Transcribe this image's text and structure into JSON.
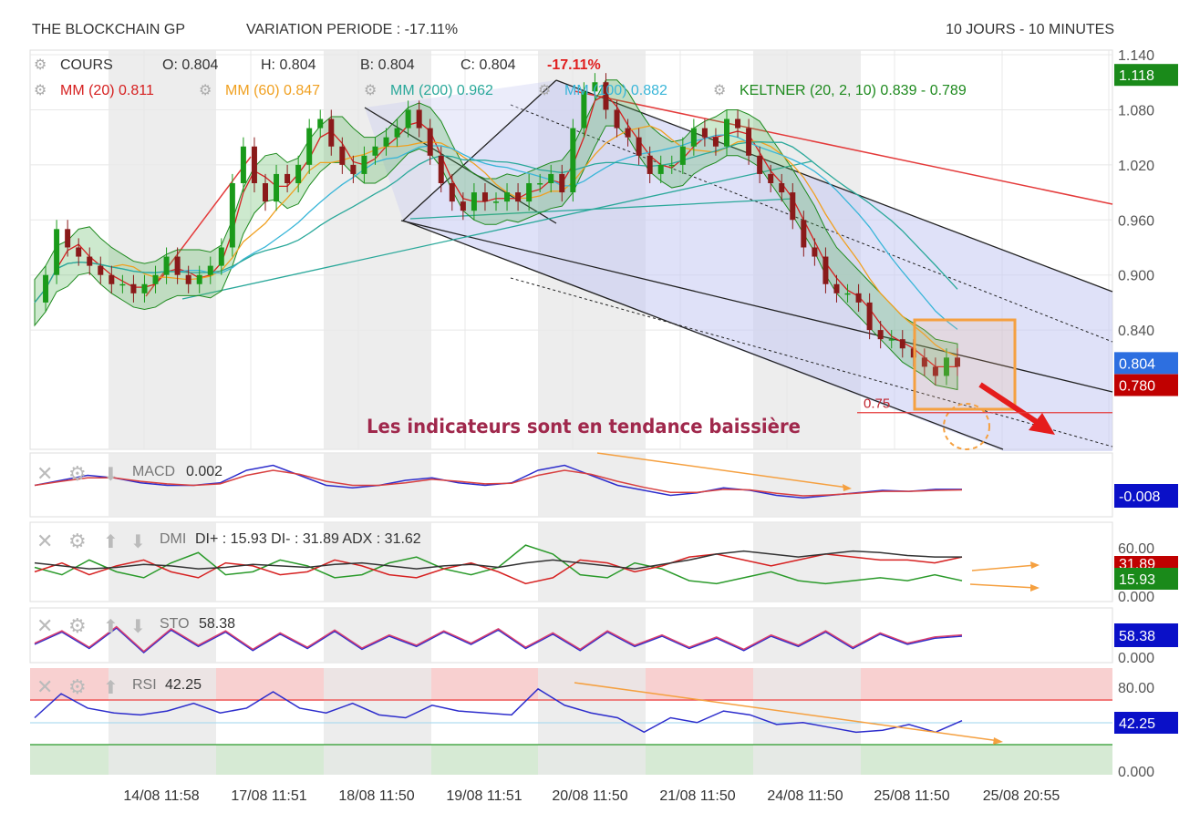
{
  "header": {
    "name": "THE BLOCKCHAIN GP",
    "variation": "VARIATION PERIODE : -17.11%",
    "period": "10 JOURS - 10 MINUTES"
  },
  "colors": {
    "mm20": "#d62020",
    "mm60": "#f0a020",
    "mm200": "#2aa89a",
    "mm100": "#39b6d8",
    "keltner": "#1e8a1e",
    "channel": "#c5c8f2",
    "neg_badge": "#0a10c8",
    "up_badge": "#1a8a1a",
    "down_badge": "#c00000",
    "annotation": "#a0284c"
  },
  "chart_data": [
    {
      "type": "line",
      "name_panel": "price",
      "title": "COURS",
      "ohlc": {
        "o_label": "O: 0.804",
        "h_label": "H: 0.804",
        "b_label": "B: 0.804",
        "c_label": "C: 0.804",
        "change": "-17.11%"
      },
      "legend": [
        {
          "label": "MM (20)",
          "value": "0.811",
          "color": "#d62020"
        },
        {
          "label": "MM (60)",
          "value": "0.847",
          "color": "#f0a020"
        },
        {
          "label": "MM (200)",
          "value": "0.962",
          "color": "#2aa89a"
        },
        {
          "label": "MM (100)",
          "value": "0.882",
          "color": "#39b6d8"
        },
        {
          "label": "KELTNER (20, 2, 10)",
          "value": "0.839 - 0.789",
          "color": "#1e8a1e"
        }
      ],
      "x_ticks": [
        "14/08 11:58",
        "17/08 11:51",
        "18/08 11:50",
        "19/08 11:51",
        "20/08 11:50",
        "21/08 11:50",
        "24/08 11:50",
        "25/08 11:50",
        "25/08 20:55"
      ],
      "y_ticks": [
        "1.140",
        "1.080",
        "1.020",
        "0.960",
        "0.900",
        "0.840"
      ],
      "ylim": [
        0.71,
        1.145
      ],
      "badges": [
        {
          "text": "1.118",
          "value": 1.118,
          "color": "#1a8a1a"
        },
        {
          "text": "0.804",
          "value": 0.804,
          "color": "#2d6fe0"
        },
        {
          "text": "0.780",
          "value": 0.78,
          "color": "#c00000"
        }
      ],
      "close_series": [
        0.87,
        0.9,
        0.95,
        0.93,
        0.92,
        0.91,
        0.9,
        0.89,
        0.89,
        0.88,
        0.89,
        0.9,
        0.92,
        0.9,
        0.89,
        0.9,
        0.91,
        0.93,
        1.0,
        1.04,
        1.0,
        0.98,
        1.01,
        1.0,
        1.02,
        1.06,
        1.07,
        1.04,
        1.02,
        1.01,
        1.03,
        1.04,
        1.05,
        1.06,
        1.08,
        1.06,
        1.03,
        1.0,
        0.98,
        0.97,
        0.99,
        0.98,
        0.98,
        0.99,
        0.98,
        1.0,
        1.0,
        1.01,
        0.99,
        1.06,
        1.1,
        1.11,
        1.08,
        1.06,
        1.05,
        1.03,
        1.01,
        1.02,
        1.02,
        1.04,
        1.06,
        1.05,
        1.04,
        1.07,
        1.06,
        1.03,
        1.01,
        1.0,
        0.99,
        0.96,
        0.93,
        0.92,
        0.89,
        0.88,
        0.88,
        0.87,
        0.84,
        0.83,
        0.83,
        0.82,
        0.81,
        0.8,
        0.79,
        0.81,
        0.8
      ],
      "level_label": "0.75",
      "level_value": 0.75,
      "annotation": "Les indicateurs sont en tendance baissière"
    },
    {
      "type": "line",
      "name_panel": "macd",
      "title": "MACD",
      "value": "0.002",
      "badge": {
        "text": "-0.008",
        "color": "#0a10c8"
      },
      "series": [
        {
          "name": "MACD",
          "values": [
            0.0,
            0.01,
            0.02,
            0.015,
            0.005,
            0.0,
            0.0,
            0.005,
            0.03,
            0.04,
            0.02,
            0.0,
            -0.005,
            0.0,
            0.01,
            0.015,
            0.005,
            0.0,
            0.005,
            0.03,
            0.04,
            0.02,
            0.0,
            -0.01,
            -0.02,
            -0.015,
            -0.005,
            -0.01,
            -0.02,
            -0.025,
            -0.02,
            -0.015,
            -0.01,
            -0.012,
            -0.008,
            -0.008
          ]
        },
        {
          "name": "Signal",
          "values": [
            0.0,
            0.008,
            0.015,
            0.015,
            0.008,
            0.003,
            0.0,
            0.003,
            0.02,
            0.03,
            0.022,
            0.008,
            0.0,
            0.0,
            0.005,
            0.012,
            0.008,
            0.003,
            0.004,
            0.02,
            0.03,
            0.022,
            0.008,
            -0.004,
            -0.014,
            -0.014,
            -0.008,
            -0.009,
            -0.016,
            -0.021,
            -0.019,
            -0.016,
            -0.012,
            -0.012,
            -0.01,
            -0.009
          ]
        }
      ]
    },
    {
      "type": "line",
      "name_panel": "dmi",
      "title": "DMI",
      "value": "DI+ : 15.93 DI- : 31.89 ADX : 31.62",
      "y_ticks": [
        "60.00",
        "0.000"
      ],
      "badges": [
        {
          "text": "31.89",
          "color": "#c00000"
        },
        {
          "text": "15.93",
          "color": "#1a8a1a"
        }
      ],
      "series": [
        {
          "name": "DI+",
          "values": [
            25,
            20,
            30,
            22,
            18,
            28,
            35,
            20,
            22,
            30,
            26,
            18,
            20,
            28,
            32,
            24,
            20,
            25,
            40,
            34,
            20,
            18,
            28,
            24,
            16,
            14,
            18,
            22,
            16,
            14,
            16,
            18,
            16,
            20,
            16
          ]
        },
        {
          "name": "DI-",
          "values": [
            22,
            28,
            20,
            26,
            30,
            22,
            18,
            28,
            26,
            20,
            22,
            30,
            26,
            20,
            18,
            24,
            28,
            22,
            14,
            18,
            30,
            28,
            22,
            26,
            32,
            34,
            30,
            26,
            30,
            34,
            32,
            30,
            30,
            28,
            32
          ]
        },
        {
          "name": "ADX",
          "values": [
            28,
            26,
            24,
            25,
            27,
            26,
            24,
            25,
            27,
            26,
            25,
            27,
            28,
            26,
            24,
            26,
            27,
            25,
            28,
            30,
            28,
            26,
            24,
            27,
            30,
            34,
            36,
            34,
            32,
            34,
            36,
            35,
            33,
            32,
            32
          ]
        }
      ]
    },
    {
      "type": "line",
      "name_panel": "sto",
      "title": "STO",
      "value": "58.38",
      "y_ticks": [
        "0.000"
      ],
      "badge": {
        "text": "58.38",
        "color": "#0a10c8"
      },
      "values": [
        40,
        70,
        30,
        80,
        20,
        75,
        35,
        70,
        25,
        65,
        30,
        72,
        28,
        60,
        35,
        70,
        40,
        75,
        30,
        65,
        25,
        70,
        35,
        60,
        30,
        55,
        25,
        60,
        35,
        70,
        30,
        65,
        40,
        55,
        60
      ]
    },
    {
      "type": "line",
      "name_panel": "rsi",
      "title": "RSI",
      "value": "42.25",
      "y_ticks": [
        "80.00",
        "0.000"
      ],
      "badge": {
        "text": "42.25",
        "color": "#0a10c8"
      },
      "ylim": [
        0,
        100
      ],
      "values": [
        45,
        70,
        55,
        50,
        48,
        52,
        60,
        50,
        55,
        72,
        55,
        50,
        60,
        48,
        45,
        58,
        52,
        50,
        48,
        75,
        58,
        50,
        45,
        30,
        45,
        40,
        52,
        48,
        38,
        40,
        35,
        30,
        32,
        38,
        30,
        42
      ]
    }
  ]
}
